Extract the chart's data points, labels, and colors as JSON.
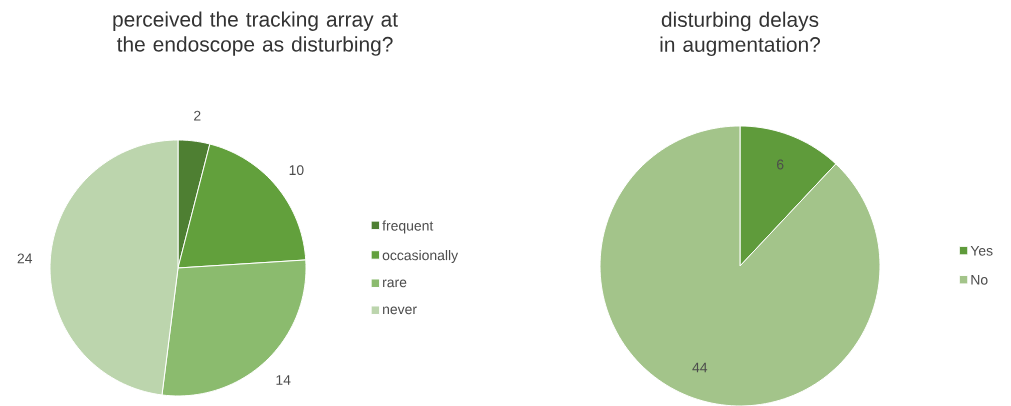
{
  "chart_data": [
    {
      "type": "pie",
      "title": "perceived the tracking array at the endoscope as disturbing?",
      "categories": [
        "frequent",
        "occasionally",
        "rare",
        "never"
      ],
      "values": [
        2,
        10,
        14,
        24
      ],
      "colors": [
        "#4e7f32",
        "#62a03c",
        "#8bbb6e",
        "#bcd5ad"
      ],
      "data_labels": true,
      "legend": "right"
    },
    {
      "type": "pie",
      "title": "disturbing delays in augmentation?",
      "categories": [
        "Yes",
        "No"
      ],
      "values": [
        6,
        44
      ],
      "colors": [
        "#5f9b3b",
        "#a3c48a"
      ],
      "data_labels": true,
      "legend": "right"
    }
  ]
}
